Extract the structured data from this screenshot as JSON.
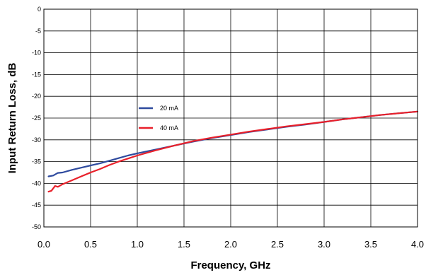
{
  "chart_data": {
    "type": "line",
    "title": "",
    "xlabel": "Frequency, GHz",
    "ylabel": "Input Return Loss, dB",
    "xlim": [
      0,
      4.0
    ],
    "ylim": [
      -50,
      0
    ],
    "x_ticks": [
      "0.0",
      "0.5",
      "1.0",
      "1.5",
      "2.0",
      "2.5",
      "3.0",
      "3.5",
      "4.0"
    ],
    "y_ticks": [
      "0",
      "-5",
      "-10",
      "-15",
      "-20",
      "-25",
      "-30",
      "-35",
      "-40",
      "-45",
      "-50"
    ],
    "grid": true,
    "legend_position": "center-left",
    "series": [
      {
        "name": "20 mA",
        "color": "#2E4A9E",
        "x": [
          0.05,
          0.1,
          0.15,
          0.2,
          0.3,
          0.4,
          0.5,
          0.6,
          0.7,
          0.8,
          0.9,
          1.0,
          1.2,
          1.4,
          1.6,
          1.8,
          2.0,
          2.2,
          2.4,
          2.6,
          2.8,
          3.0,
          3.2,
          3.4,
          3.6,
          3.8,
          4.0
        ],
        "values": [
          -38.4,
          -38.2,
          -37.6,
          -37.5,
          -36.9,
          -36.4,
          -35.9,
          -35.4,
          -34.8,
          -34.2,
          -33.6,
          -33.1,
          -32.2,
          -31.3,
          -30.4,
          -29.6,
          -28.9,
          -28.2,
          -27.6,
          -27.0,
          -26.5,
          -25.9,
          -25.3,
          -24.8,
          -24.3,
          -23.9,
          -23.5
        ]
      },
      {
        "name": "40 mA",
        "color": "#E8202A",
        "x": [
          0.05,
          0.08,
          0.12,
          0.15,
          0.2,
          0.3,
          0.4,
          0.5,
          0.6,
          0.7,
          0.8,
          0.9,
          1.0,
          1.2,
          1.4,
          1.6,
          1.8,
          2.0,
          2.2,
          2.4,
          2.6,
          2.8,
          3.0,
          3.2,
          3.4,
          3.6,
          3.8,
          4.0
        ],
        "values": [
          -41.9,
          -41.7,
          -40.6,
          -40.8,
          -40.2,
          -39.3,
          -38.4,
          -37.5,
          -36.7,
          -35.8,
          -35.0,
          -34.3,
          -33.6,
          -32.4,
          -31.3,
          -30.3,
          -29.5,
          -28.8,
          -28.1,
          -27.5,
          -26.9,
          -26.4,
          -25.9,
          -25.3,
          -24.8,
          -24.3,
          -23.9,
          -23.5
        ]
      }
    ]
  }
}
